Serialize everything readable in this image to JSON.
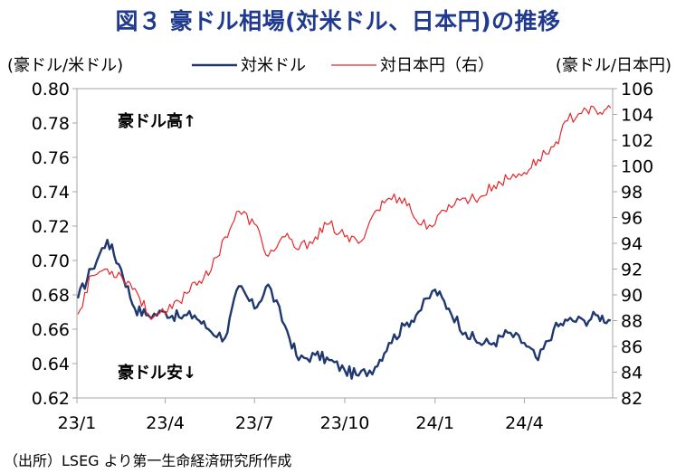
{
  "title": "図３ 豪ドル相場(対米ドル、日本円)の推移",
  "source": "（出所）LSEG より第一生命経済研究所作成",
  "chart_data": {
    "type": "line",
    "left_axis_label": "(豪ドル/米ドル)",
    "right_axis_label": "(豪ドル/日本円)",
    "left_ylim": [
      0.62,
      0.8
    ],
    "right_ylim": [
      82,
      106
    ],
    "left_ticks": [
      "0.80",
      "0.78",
      "0.76",
      "0.74",
      "0.72",
      "0.70",
      "0.68",
      "0.66",
      "0.64",
      "0.62"
    ],
    "right_ticks": [
      "106",
      "104",
      "102",
      "100",
      "98",
      "96",
      "94",
      "92",
      "90",
      "88",
      "86",
      "84",
      "82"
    ],
    "x_ticks": [
      "23/1",
      "23/4",
      "23/7",
      "23/10",
      "24/1",
      "24/4"
    ],
    "annotations": {
      "high": "豪ドル高↑",
      "low": "豪ドル安↓"
    },
    "grid": false,
    "legend_position": "top",
    "series": [
      {
        "name": "対米ドル",
        "axis": "left",
        "color": "#1f3870",
        "x": [
          "23/1/2",
          "23/1/16",
          "23/2/1",
          "23/2/15",
          "23/3/1",
          "23/3/15",
          "23/4/1",
          "23/4/15",
          "23/5/1",
          "23/5/15",
          "23/6/1",
          "23/6/15",
          "23/7/1",
          "23/7/15",
          "23/8/1",
          "23/8/15",
          "23/9/1",
          "23/9/15",
          "23/10/1",
          "23/10/15",
          "23/11/1",
          "23/11/15",
          "23/12/1",
          "23/12/15",
          "24/1/1",
          "24/1/15",
          "24/2/1",
          "24/2/15",
          "24/3/1",
          "24/3/15",
          "24/4/1",
          "24/4/15",
          "24/5/1",
          "24/5/15",
          "24/6/1",
          "24/6/15",
          "24/6/28"
        ],
        "values": [
          0.678,
          0.695,
          0.712,
          0.695,
          0.672,
          0.668,
          0.67,
          0.667,
          0.668,
          0.66,
          0.655,
          0.685,
          0.672,
          0.686,
          0.662,
          0.642,
          0.645,
          0.642,
          0.636,
          0.633,
          0.638,
          0.652,
          0.662,
          0.67,
          0.683,
          0.672,
          0.658,
          0.652,
          0.652,
          0.658,
          0.652,
          0.642,
          0.66,
          0.665,
          0.665,
          0.668,
          0.665
        ]
      },
      {
        "name": "対日本円（右）",
        "axis": "right",
        "color": "#e8262a",
        "x": [
          "23/1/2",
          "23/1/16",
          "23/2/1",
          "23/2/15",
          "23/3/1",
          "23/3/15",
          "23/4/1",
          "23/4/15",
          "23/5/1",
          "23/5/15",
          "23/6/1",
          "23/6/15",
          "23/7/1",
          "23/7/15",
          "23/8/1",
          "23/8/15",
          "23/9/1",
          "23/9/15",
          "23/10/1",
          "23/10/15",
          "23/11/1",
          "23/11/15",
          "23/12/1",
          "23/12/15",
          "24/1/1",
          "24/1/15",
          "24/2/1",
          "24/2/15",
          "24/3/1",
          "24/3/15",
          "24/4/1",
          "24/4/15",
          "24/5/1",
          "24/5/15",
          "24/6/1",
          "24/6/15",
          "24/6/28"
        ],
        "values": [
          88.5,
          91.5,
          92.0,
          91.5,
          90.5,
          88.5,
          88.5,
          89.5,
          91.0,
          91.5,
          94.5,
          96.5,
          95.5,
          93.0,
          94.5,
          93.5,
          94.5,
          95.5,
          94.5,
          94.0,
          96.5,
          97.5,
          97.5,
          95.5,
          95.5,
          97.0,
          97.5,
          97.5,
          98.5,
          99.0,
          99.5,
          100.5,
          101.5,
          103.5,
          104.5,
          104.0,
          104.5
        ]
      }
    ]
  }
}
